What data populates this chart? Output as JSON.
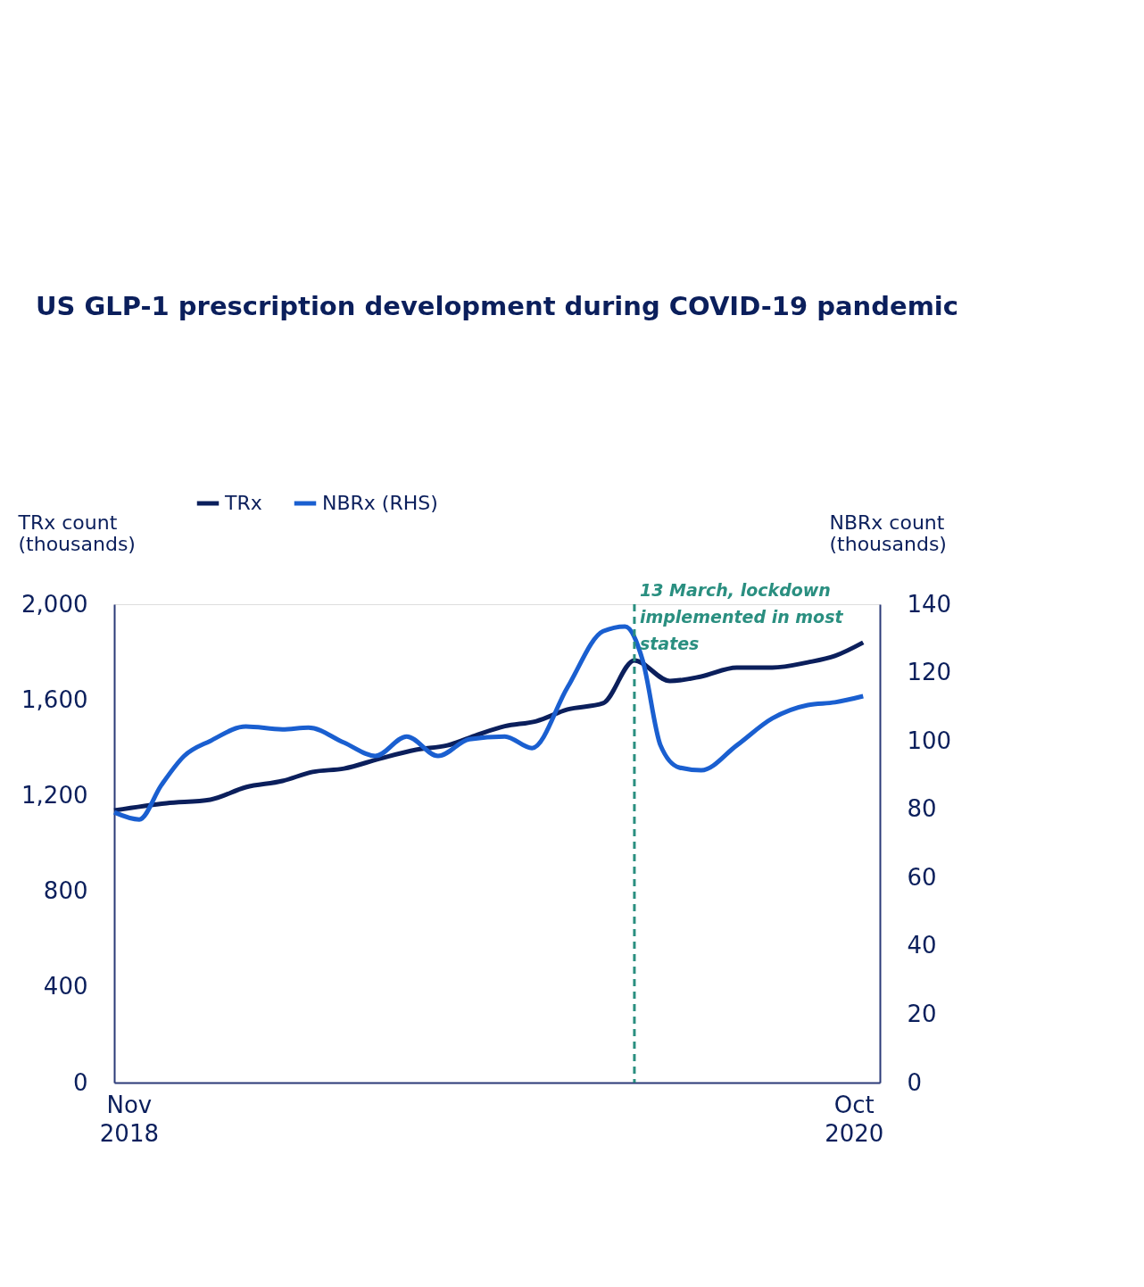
{
  "chart_data": {
    "type": "line",
    "title": "US GLP-1 prescription development during COVID-19 pandemic",
    "ylabel": "TRx count (thousands)",
    "y2label": "NBRx count (thousands)",
    "xlim": [
      "2018-11-01",
      "2020-11-03"
    ],
    "xticks": [
      {
        "value": "2018-11-15",
        "label": "Nov 2018"
      },
      {
        "value": "2020-10-09",
        "label": "Oct 2020"
      }
    ],
    "ylim": [
      0,
      2000
    ],
    "yticks": [
      0,
      400,
      800,
      {
        "value": 1200,
        "label": "1,200"
      },
      {
        "value": 1600,
        "label": "1,600"
      },
      {
        "value": 2000,
        "label": "2,000"
      }
    ],
    "y2lim": [
      0,
      140
    ],
    "y2ticks": [
      0,
      20,
      40,
      60,
      80,
      100,
      120,
      140
    ],
    "grid": false,
    "legend": "top",
    "marker": "none",
    "line_style": "solid",
    "series": [
      {
        "name": "TRx",
        "color": "#0b1f5c",
        "x": [
          "2018-11-01",
          "2018-12-21",
          "2019-02-01",
          "2019-03-07",
          "2019-04-11",
          "2019-05-10",
          "2019-06-09",
          "2019-07-13",
          "2019-08-17",
          "2019-09-16",
          "2019-10-15",
          "2019-11-10",
          "2019-12-10",
          "2020-01-09",
          "2020-02-12",
          "2020-03-13",
          "2020-04-16",
          "2020-05-16",
          "2020-06-19",
          "2020-07-23",
          "2020-08-26",
          "2020-09-21",
          "2020-10-18"
        ],
        "values": [
          1138,
          1168,
          1183,
          1235,
          1261,
          1299,
          1313,
          1354,
          1392,
          1410,
          1455,
          1490,
          1511,
          1560,
          1586,
          1765,
          1679,
          1698,
          1735,
          1735,
          1757,
          1784,
          1840
        ]
      },
      {
        "name": "NBRx (RHS)",
        "color": "#1a5fd0",
        "axis": "y2",
        "x": [
          "2018-11-01",
          "2018-11-25",
          "2018-12-16",
          "2019-01-07",
          "2019-02-01",
          "2019-03-07",
          "2019-04-11",
          "2019-05-06",
          "2019-06-09",
          "2019-07-09",
          "2019-08-08",
          "2019-09-07",
          "2019-10-07",
          "2019-11-10",
          "2019-12-06",
          "2020-01-09",
          "2020-02-12",
          "2020-03-04",
          "2020-03-21",
          "2020-04-07",
          "2020-04-25",
          "2020-05-16",
          "2020-06-19",
          "2020-07-23",
          "2020-08-26",
          "2020-09-21",
          "2020-10-18"
        ],
        "values": [
          79.1,
          77.0,
          87.0,
          95.6,
          100.0,
          104.2,
          103.4,
          103.9,
          99.5,
          95.6,
          101.3,
          95.6,
          100.5,
          101.3,
          97.9,
          115.7,
          132.1,
          133.5,
          123.5,
          98.7,
          92.2,
          91.4,
          98.7,
          106.6,
          110.5,
          111.3,
          113.1
        ]
      }
    ],
    "ref_lines": [
      {
        "axis": "x",
        "value": "2020-03-13",
        "label": "13 March, lockdown implemented in most states",
        "color": "#2a8f80",
        "line_style": "dashed"
      }
    ]
  }
}
